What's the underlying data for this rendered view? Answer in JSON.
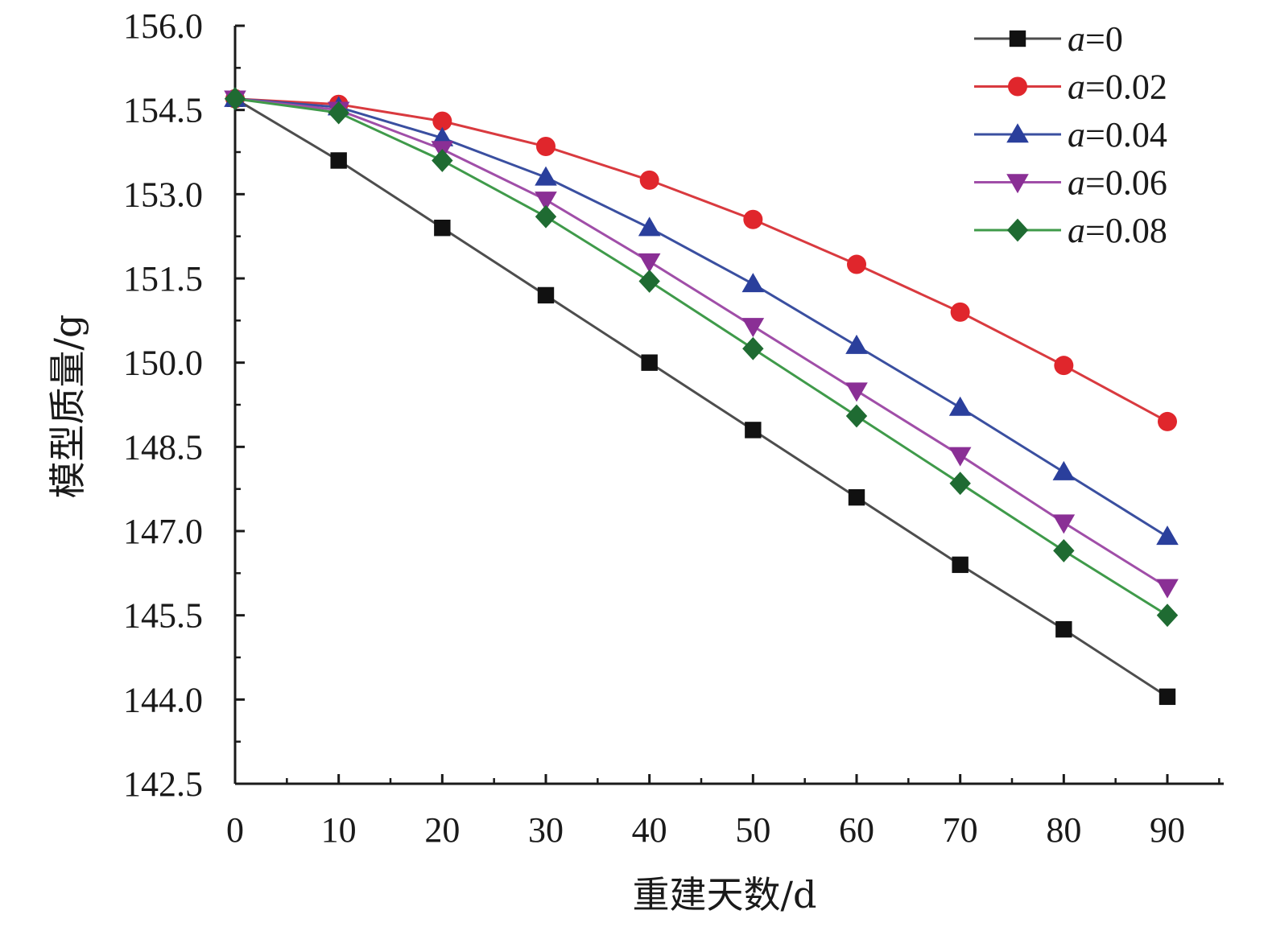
{
  "chart_data": {
    "type": "line",
    "xlabel": "重建天数/d",
    "ylabel": "模型质量/g",
    "x": [
      0,
      10,
      20,
      30,
      40,
      50,
      60,
      70,
      80,
      90
    ],
    "xlim": [
      0,
      95
    ],
    "ylim": [
      142.5,
      156.0
    ],
    "xticks": [
      "0",
      "10",
      "20",
      "30",
      "40",
      "50",
      "60",
      "70",
      "80",
      "90"
    ],
    "yticks": [
      "142.5",
      "144.0",
      "145.5",
      "147.0",
      "148.5",
      "150.0",
      "151.5",
      "153.0",
      "154.5",
      "156.0"
    ],
    "grid": false,
    "legend_position": "top-right",
    "series": [
      {
        "name": "a=0",
        "name_var": "a",
        "name_rest": "=0",
        "marker": "square",
        "color": "#4d4d4d",
        "marker_color": "#111111",
        "values": [
          154.7,
          153.6,
          152.4,
          151.2,
          150.0,
          148.8,
          147.6,
          146.4,
          145.25,
          144.05
        ]
      },
      {
        "name": "a=0.02",
        "name_var": "a",
        "name_rest": "=0.02",
        "marker": "circle",
        "color": "#d93a3f",
        "marker_color": "#e0262c",
        "values": [
          154.7,
          154.6,
          154.3,
          153.85,
          153.25,
          152.55,
          151.75,
          150.9,
          149.95,
          148.95
        ]
      },
      {
        "name": "a=0.04",
        "name_var": "a",
        "name_rest": "=0.04",
        "marker": "triangle-up",
        "color": "#3a4fa0",
        "marker_color": "#2a3f9c",
        "values": [
          154.7,
          154.55,
          154.0,
          153.3,
          152.4,
          151.4,
          150.3,
          149.2,
          148.05,
          146.9
        ]
      },
      {
        "name": "a=0.06",
        "name_var": "a",
        "name_rest": "=0.06",
        "marker": "triangle-down",
        "color": "#a04ea8",
        "marker_color": "#8a2f95",
        "values": [
          154.7,
          154.5,
          153.8,
          152.9,
          151.8,
          150.65,
          149.5,
          148.35,
          147.15,
          146.0
        ]
      },
      {
        "name": "a=0.08",
        "name_var": "a",
        "name_rest": "=0.08",
        "marker": "diamond",
        "color": "#3f9a4a",
        "marker_color": "#1f6b32",
        "values": [
          154.7,
          154.45,
          153.6,
          152.6,
          151.45,
          150.25,
          149.05,
          147.85,
          146.65,
          145.5
        ]
      }
    ]
  }
}
